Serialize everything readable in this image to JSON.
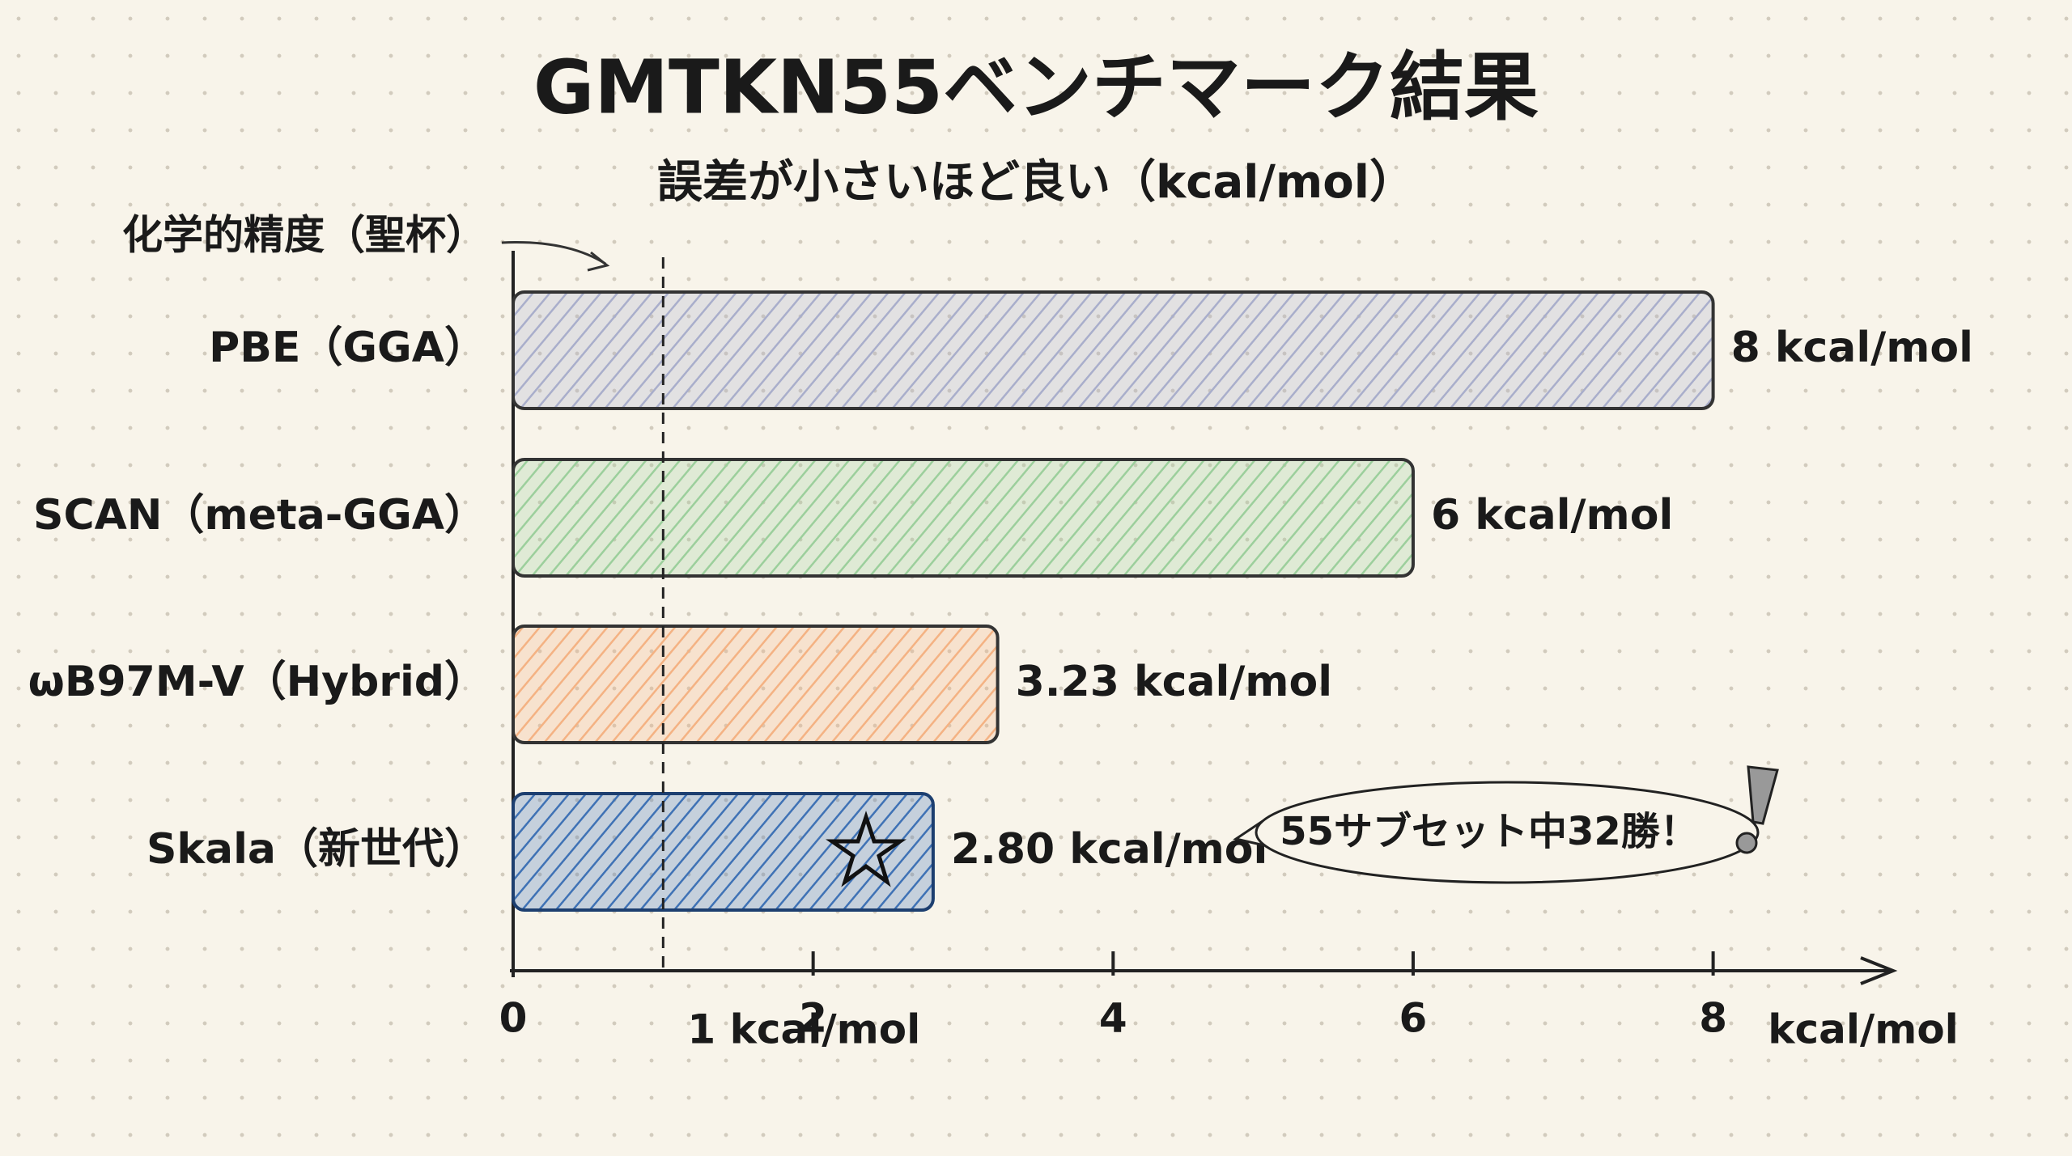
{
  "chart_data": {
    "type": "hbar",
    "title": "GMTKN55ベンチマーク結果",
    "subtitle": "誤差が小さいほど良い（kcal/mol）",
    "categories": [
      "PBE（GGA）",
      "SCAN（meta-GGA）",
      "ωB97M-V（Hybrid）",
      "Skala（新世代）"
    ],
    "values": [
      8,
      6,
      3.23,
      2.8
    ],
    "value_labels": [
      "8 kcal/mol",
      "6 kcal/mol",
      "3.23 kcal/mol",
      "2.80 kcal/mol"
    ],
    "colors": [
      "#a9aecb",
      "#9ccf9c",
      "#f4b283",
      "#3f72b5"
    ],
    "xlim": [
      0,
      9.2
    ],
    "xticks": [
      0,
      2,
      4,
      6,
      8
    ],
    "x_label": "kcal/mol",
    "reference_line": {
      "value": 1,
      "label": "1 kcal/mol",
      "annotation": "化学的精度（聖杯）"
    },
    "callout": "55サブセット中32勝！"
  }
}
